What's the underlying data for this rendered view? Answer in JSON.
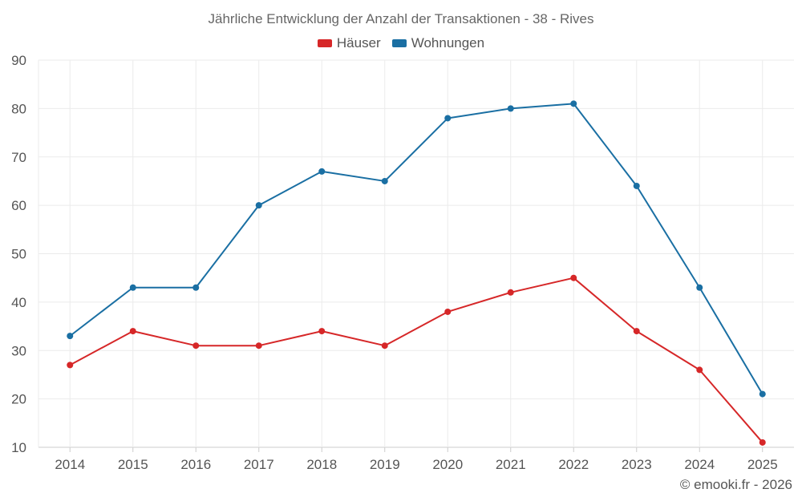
{
  "chart_data": {
    "type": "line",
    "title": "Jährliche Entwicklung der Anzahl der Transaktionen - 38 - Rives",
    "categories": [
      "2014",
      "2015",
      "2016",
      "2017",
      "2018",
      "2019",
      "2020",
      "2021",
      "2022",
      "2023",
      "2024",
      "2025"
    ],
    "series": [
      {
        "name": "Häuser",
        "color": "#d62728",
        "values": [
          27,
          34,
          31,
          31,
          34,
          31,
          38,
          42,
          45,
          34,
          26,
          11
        ]
      },
      {
        "name": "Wohnungen",
        "color": "#1a6fa3",
        "values": [
          33,
          43,
          43,
          60,
          67,
          65,
          78,
          80,
          81,
          64,
          43,
          21
        ]
      }
    ],
    "ylim": [
      10,
      90
    ],
    "yticks": [
      10,
      20,
      30,
      40,
      50,
      60,
      70,
      80,
      90
    ],
    "xlabel": "",
    "ylabel": "",
    "grid": true,
    "legend_position": "top-center"
  },
  "footer": "© emooki.fr - 2026"
}
